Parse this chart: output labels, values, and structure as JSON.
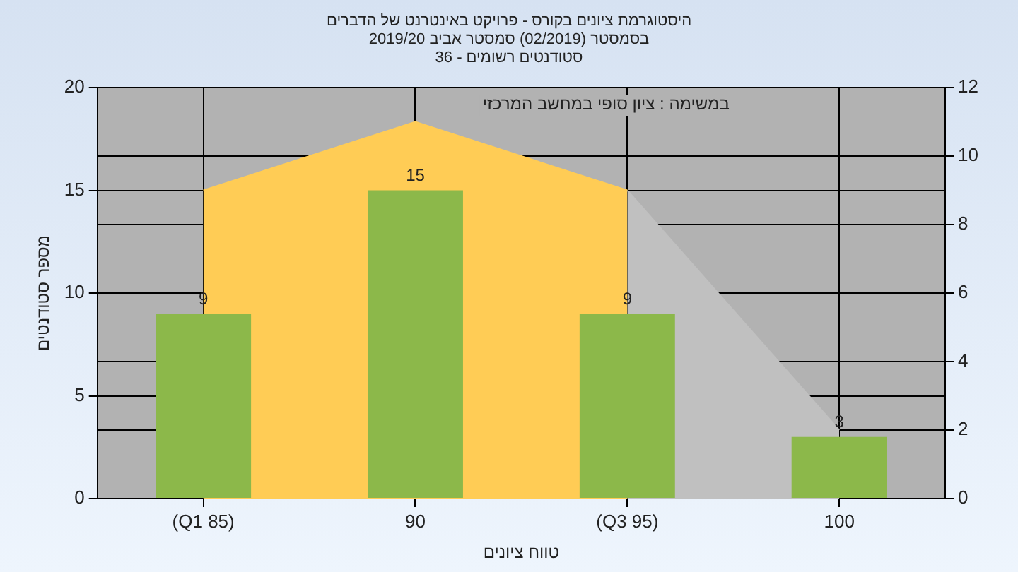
{
  "chart_data": {
    "type": "bar",
    "title": "היסטוגרמת ציונים בקורס - פרויקט באינטרנט של הדברים\nבסמסטר (02/2019) סמסטר אביב 2019/20\nסטודנטים רשומים - 36",
    "xlabel": "טווח ציונים",
    "ylabel": "מספר סטודנטים",
    "annotations": [
      "במשימה : ציון סופי במחשב המרכזי"
    ],
    "categories": [
      "(Q1 85)",
      "90",
      "(Q3 95)",
      "100"
    ],
    "series": [
      {
        "color": "#8cb84a",
        "values": [
          9,
          15,
          9,
          3
        ],
        "value_labels": [
          "9",
          "15",
          "9",
          "3"
        ]
      },
      {
        "type": "area",
        "axis": "y2",
        "color": "#ffcc55",
        "values": [
          9,
          11,
          9,
          null
        ]
      },
      {
        "type": "area",
        "axis": "y2",
        "color": "#c0c0c0",
        "values": [
          null,
          null,
          9,
          2
        ]
      }
    ],
    "ylim": [
      0,
      20
    ],
    "yticks": [
      0,
      5,
      10,
      15,
      20
    ],
    "y2lim": [
      0,
      12
    ],
    "y2ticks": [
      0,
      2,
      4,
      6,
      8,
      10,
      12
    ],
    "grid": true,
    "legend": false
  }
}
